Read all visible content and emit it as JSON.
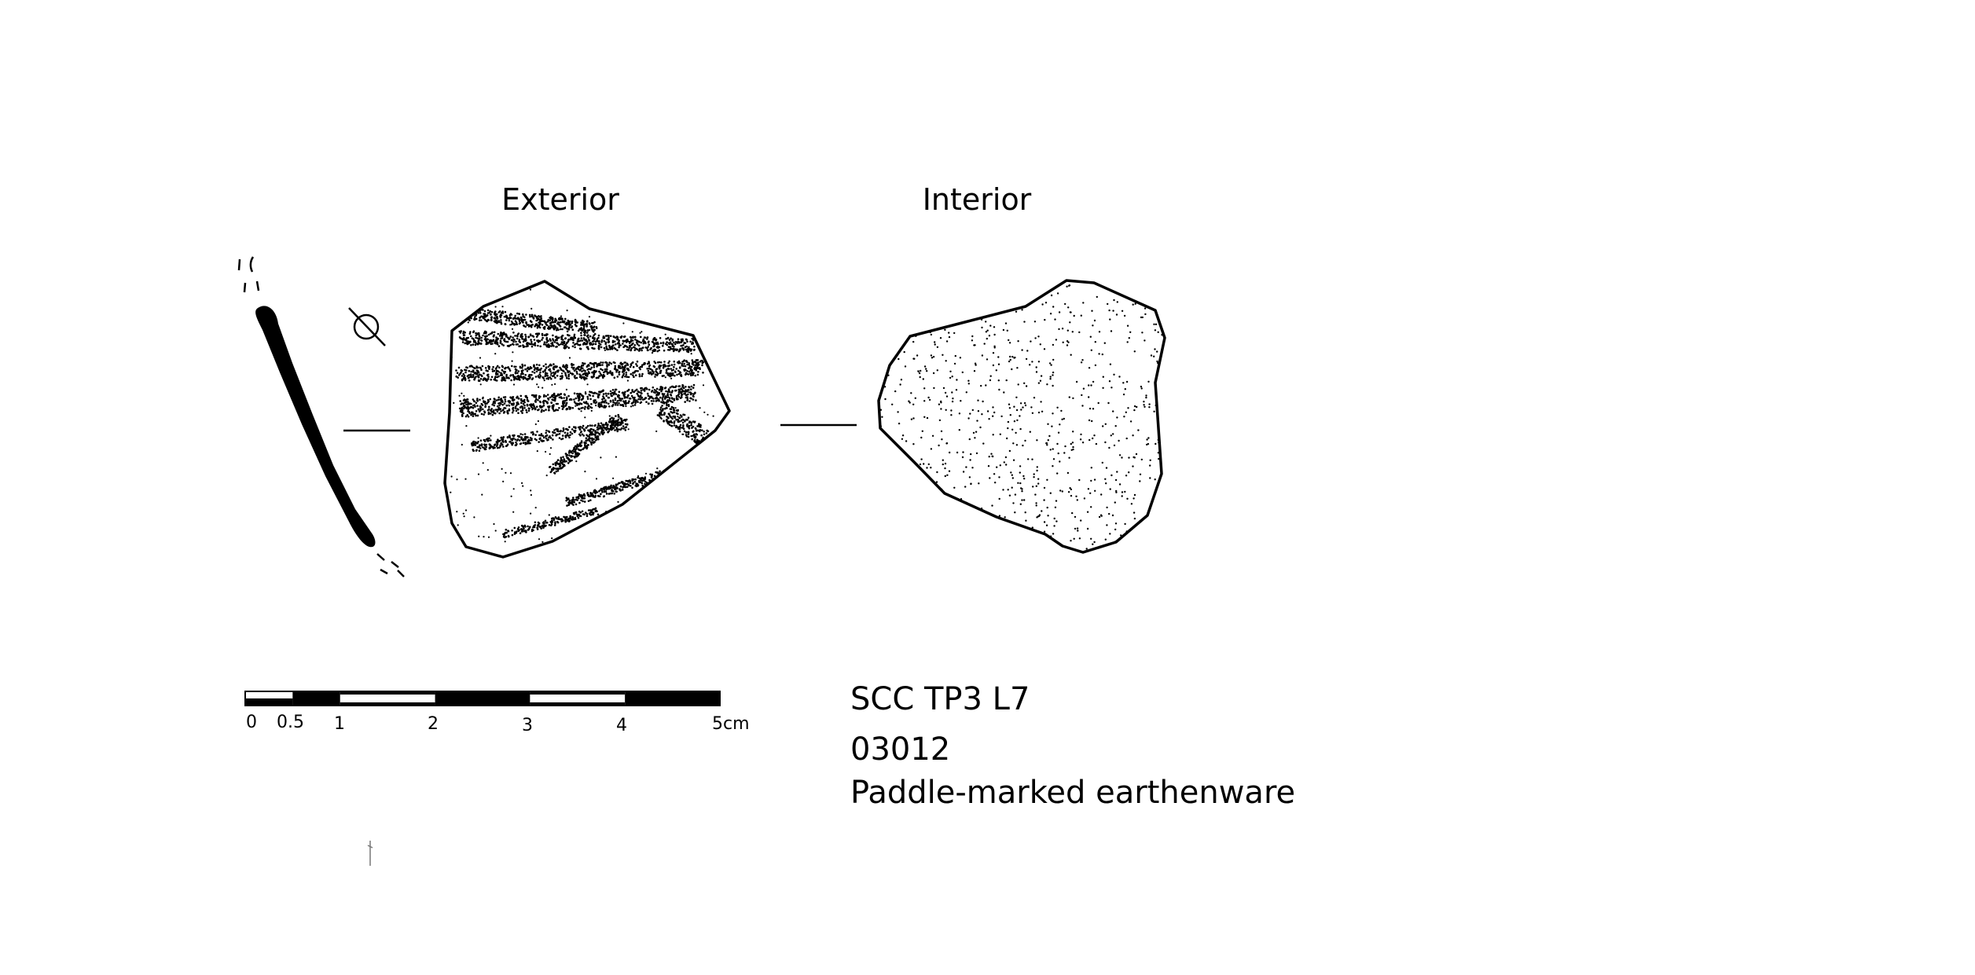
{
  "views": {
    "exterior_label": "Exterior",
    "interior_label": "Interior"
  },
  "scale_bar": {
    "unit": "cm",
    "ticks": [
      "0",
      "0.5",
      "1",
      "2",
      "3",
      "4",
      "5cm"
    ],
    "tick_values": [
      0,
      0.5,
      1,
      2,
      3,
      4,
      5
    ],
    "colors": {
      "ink": "#000000",
      "paper": "#ffffff"
    }
  },
  "catalogue": {
    "site_context": "SCC TP3 L7",
    "object_number": "03012",
    "description": "Paddle-marked earthenware"
  },
  "symbols": {
    "diameter_symbol": "diameter-symbol"
  }
}
